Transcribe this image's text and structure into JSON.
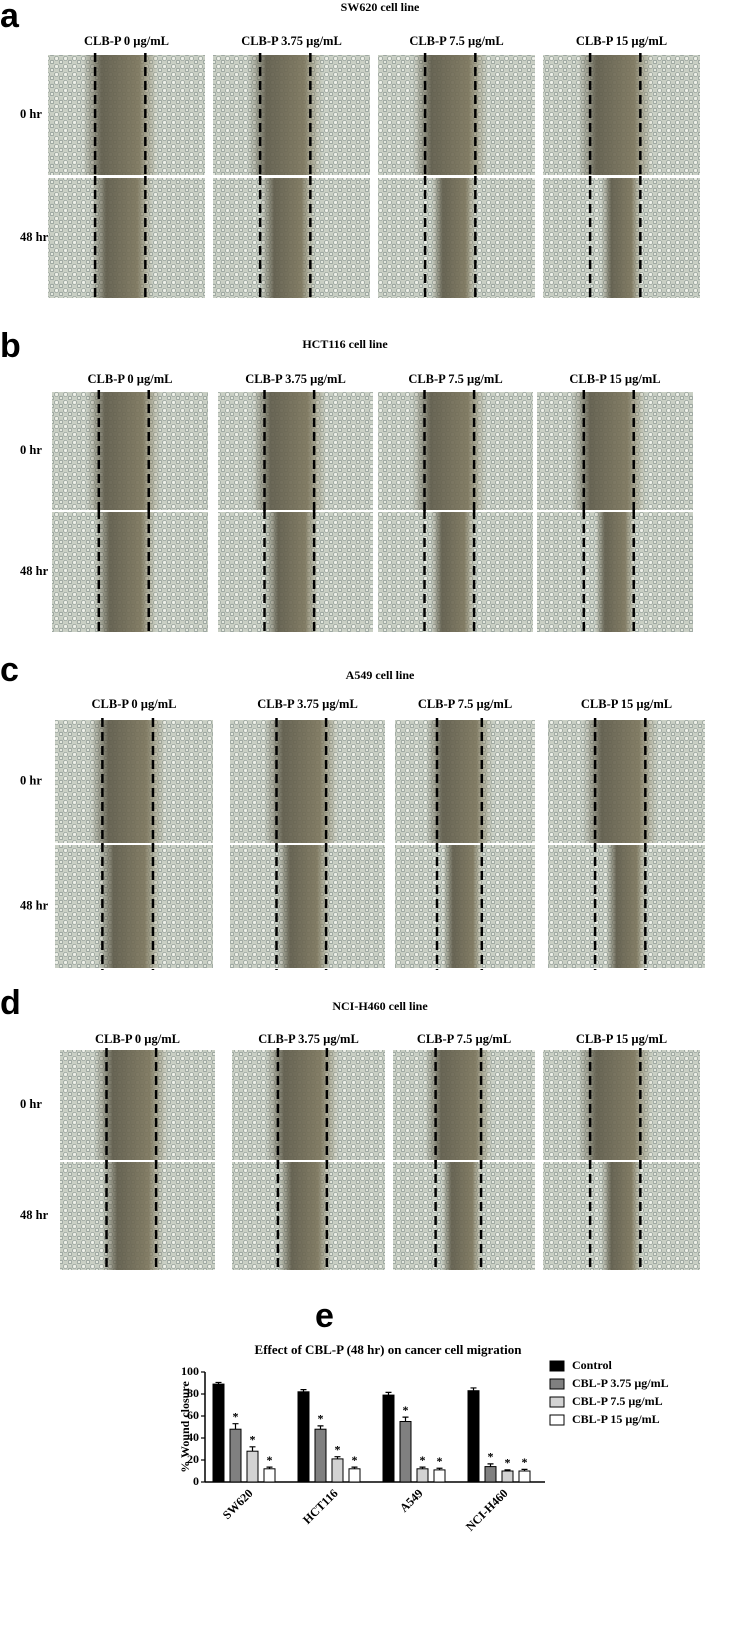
{
  "panels": [
    {
      "letter": "a",
      "title": "SW620 cell line",
      "columns": [
        "CLB-P 0 µg/mL",
        "CLB-P 3.75 µg/mL",
        "CLB-P 7.5 µg/mL",
        "CLB-P 15 µg/mL"
      ],
      "rows": [
        "0 hr",
        "48 hr"
      ]
    },
    {
      "letter": "b",
      "title": "HCT116 cell line",
      "columns": [
        "CLB-P 0 µg/mL",
        "CLB-P 3.75 µg/mL",
        "CLB-P 7.5 µg/mL",
        "CLB-P 15 µg/mL"
      ],
      "rows": [
        "0 hr",
        "48 hr"
      ]
    },
    {
      "letter": "c",
      "title": "A549 cell line",
      "columns": [
        "CLB-P 0 µg/mL",
        "CLB-P 3.75 µg/mL",
        "CLB-P 7.5 µg/mL",
        "CLB-P 15 µg/mL"
      ],
      "rows": [
        "0 hr",
        "48 hr"
      ]
    },
    {
      "letter": "d",
      "title": "NCI-H460 cell line",
      "columns": [
        "CLB-P 0 µg/mL",
        "CLB-P 3.75 µg/mL",
        "CLB-P 7.5 µg/mL",
        "CLB-P 15 µg/mL"
      ],
      "rows": [
        "0 hr",
        "48 hr"
      ]
    }
  ],
  "chart_data": {
    "type": "bar",
    "letter": "e",
    "title": "Effect of CBL-P (48 hr) on cancer cell migration",
    "y_label": "% Wound closure",
    "categories": [
      "SW620",
      "HCT116",
      "A549",
      "NCI-H460"
    ],
    "series": [
      {
        "name": "Control",
        "color": "#000000",
        "values": [
          89,
          82,
          79,
          83
        ],
        "errors": [
          1.5,
          2,
          2.5,
          2.5
        ]
      },
      {
        "name": "CBL-P 3.75 µg/mL",
        "color": "#808080",
        "values": [
          48,
          48,
          55,
          14
        ],
        "errors": [
          5,
          3,
          4,
          2.5
        ],
        "annotations": [
          "*",
          "*",
          "*",
          "*"
        ]
      },
      {
        "name": "CBL-P 7.5 µg/mL",
        "color": "#d3d3d3",
        "values": [
          28,
          21,
          12,
          10
        ],
        "errors": [
          4,
          2,
          1.5,
          1
        ],
        "annotations": [
          "*",
          "*",
          "*",
          "*"
        ]
      },
      {
        "name": "CBL-P 15 µg/mL",
        "color": "#ffffff",
        "values": [
          12,
          12,
          11,
          10
        ],
        "errors": [
          1.5,
          1.5,
          1.5,
          1.5
        ],
        "annotations": [
          "*",
          "*",
          "*",
          "*"
        ]
      }
    ],
    "ylim": [
      0,
      100
    ],
    "yticks": [
      0,
      20,
      40,
      60,
      80,
      100
    ],
    "legend": "right"
  }
}
